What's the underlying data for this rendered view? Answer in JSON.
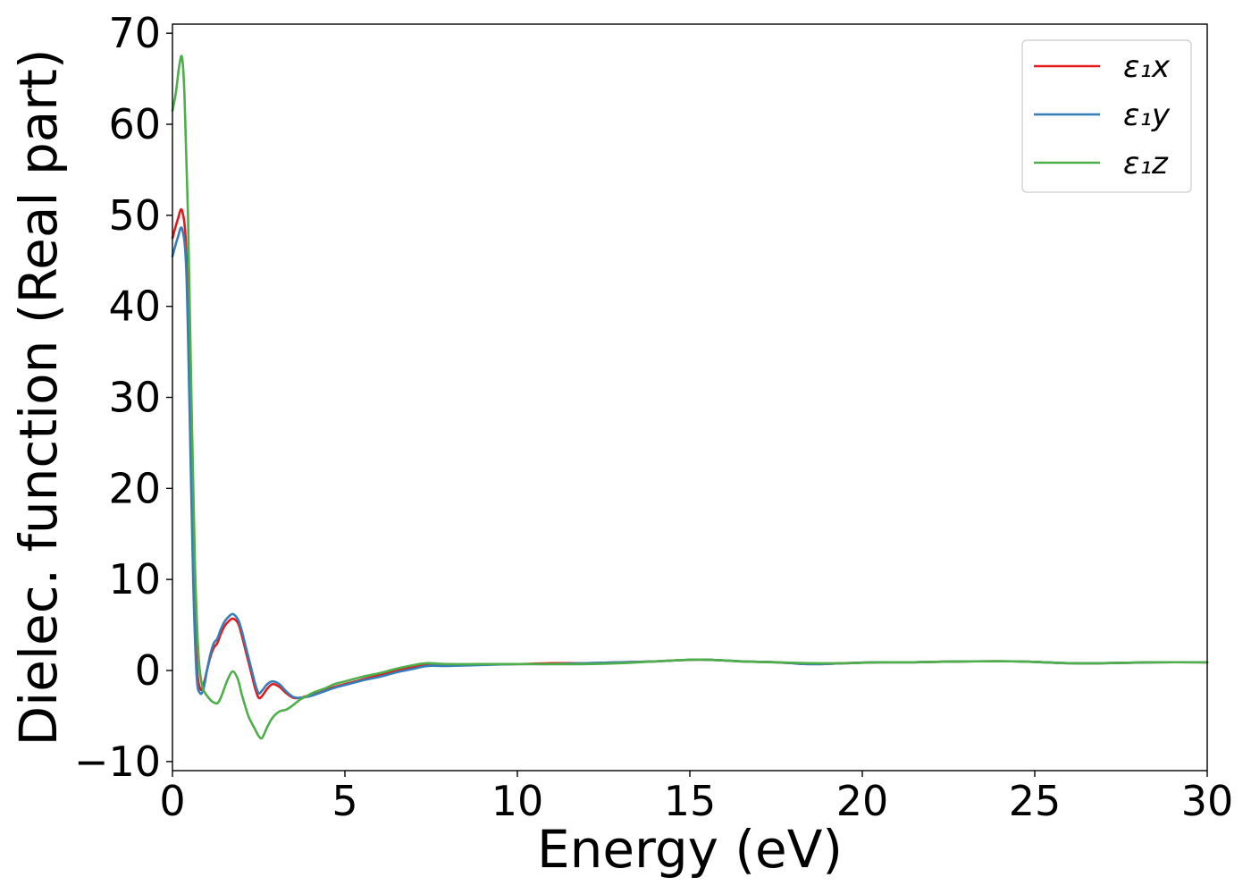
{
  "chart_data": {
    "type": "line",
    "title": "",
    "xlabel": "Energy (eV)",
    "ylabel": "Dielec. function (Real part)",
    "xlim": [
      0,
      30
    ],
    "ylim": [
      -11,
      71
    ],
    "xticks": [
      0,
      5,
      10,
      15,
      20,
      25,
      30
    ],
    "xtick_labels": [
      "0",
      "5",
      "10",
      "15",
      "20",
      "25",
      "30"
    ],
    "yticks": [
      -10,
      0,
      10,
      20,
      30,
      40,
      50,
      60,
      70
    ],
    "ytick_labels": [
      "−10",
      "0",
      "10",
      "20",
      "30",
      "40",
      "50",
      "60",
      "70"
    ],
    "grid": false,
    "legend_position": "top-right",
    "series": [
      {
        "name": "ε₁x",
        "color": "#e41a1c",
        "x": [
          0,
          0.15,
          0.28,
          0.4,
          0.5,
          0.6,
          0.7,
          0.8,
          0.9,
          1.0,
          1.1,
          1.2,
          1.3,
          1.4,
          1.5,
          1.6,
          1.75,
          1.9,
          2.0,
          2.1,
          2.2,
          2.3,
          2.4,
          2.5,
          2.6,
          2.75,
          2.9,
          3.1,
          3.3,
          3.5,
          3.7,
          3.9,
          4.1,
          4.4,
          4.7,
          5.0,
          5.5,
          6.0,
          6.5,
          7.0,
          7.4,
          8.0,
          9.0,
          10.0,
          11.0,
          12.0,
          13.0,
          14.0,
          15.3,
          16.5,
          17.5,
          18.5,
          19.5,
          20.5,
          21.5,
          23.0,
          24.5,
          26.0,
          27.0,
          28.5,
          30.0
        ],
        "y": [
          47.5,
          49.5,
          50.5,
          46.0,
          30.0,
          12.0,
          1.0,
          -2.0,
          -1.5,
          0.0,
          1.5,
          2.5,
          3.0,
          4.0,
          4.8,
          5.3,
          5.7,
          5.2,
          4.0,
          2.5,
          1.0,
          -0.5,
          -2.0,
          -3.0,
          -2.8,
          -2.0,
          -1.5,
          -1.8,
          -2.5,
          -3.0,
          -3.0,
          -2.8,
          -2.6,
          -2.2,
          -1.8,
          -1.5,
          -1.0,
          -0.5,
          0.0,
          0.4,
          0.7,
          0.6,
          0.7,
          0.7,
          0.8,
          0.8,
          0.9,
          1.0,
          1.2,
          1.0,
          0.9,
          0.7,
          0.8,
          0.9,
          0.9,
          1.0,
          1.0,
          0.8,
          0.8,
          0.9,
          0.9
        ]
      },
      {
        "name": "ε₁y",
        "color": "#377eb8",
        "x": [
          0,
          0.15,
          0.28,
          0.4,
          0.5,
          0.6,
          0.7,
          0.8,
          0.9,
          1.0,
          1.1,
          1.2,
          1.3,
          1.4,
          1.5,
          1.6,
          1.75,
          1.9,
          2.0,
          2.1,
          2.2,
          2.3,
          2.4,
          2.5,
          2.6,
          2.75,
          2.9,
          3.1,
          3.3,
          3.5,
          3.7,
          3.9,
          4.1,
          4.4,
          4.7,
          5.0,
          5.5,
          6.0,
          6.5,
          7.0,
          7.4,
          8.0,
          9.0,
          10.0,
          11.0,
          12.0,
          13.0,
          14.0,
          15.3,
          16.5,
          17.5,
          18.5,
          19.5,
          20.5,
          21.5,
          23.0,
          24.5,
          26.0,
          27.0,
          28.5,
          30.0
        ],
        "y": [
          45.5,
          47.5,
          48.5,
          44.0,
          28.0,
          10.0,
          -0.5,
          -2.5,
          -2.0,
          0.0,
          1.8,
          3.0,
          3.5,
          4.5,
          5.3,
          5.8,
          6.2,
          5.6,
          4.5,
          3.0,
          1.5,
          0.0,
          -1.5,
          -2.5,
          -2.2,
          -1.5,
          -1.2,
          -1.5,
          -2.3,
          -2.9,
          -3.0,
          -2.9,
          -2.7,
          -2.3,
          -1.9,
          -1.6,
          -1.1,
          -0.7,
          -0.2,
          0.2,
          0.5,
          0.5,
          0.6,
          0.7,
          0.7,
          0.8,
          0.9,
          1.0,
          1.2,
          1.0,
          0.9,
          0.7,
          0.8,
          0.9,
          0.9,
          1.0,
          1.0,
          0.8,
          0.8,
          0.9,
          0.9
        ]
      },
      {
        "name": "ε₁z",
        "color": "#4daf4a",
        "x": [
          0,
          0.1,
          0.2,
          0.28,
          0.35,
          0.45,
          0.55,
          0.65,
          0.75,
          0.85,
          0.95,
          1.05,
          1.15,
          1.3,
          1.4,
          1.5,
          1.6,
          1.75,
          1.9,
          2.0,
          2.1,
          2.2,
          2.3,
          2.4,
          2.5,
          2.6,
          2.75,
          2.9,
          3.1,
          3.3,
          3.5,
          3.7,
          3.9,
          4.1,
          4.4,
          4.7,
          5.0,
          5.5,
          6.0,
          6.5,
          7.0,
          7.4,
          8.0,
          9.0,
          10.0,
          11.0,
          12.0,
          13.0,
          14.0,
          15.3,
          16.5,
          17.5,
          18.5,
          19.5,
          20.5,
          21.5,
          23.0,
          24.5,
          26.0,
          27.0,
          28.5,
          30.0
        ],
        "y": [
          61.5,
          63.5,
          66.5,
          67.3,
          63.0,
          50.0,
          30.0,
          12.0,
          2.0,
          -1.5,
          -2.5,
          -3.0,
          -3.4,
          -3.6,
          -3.0,
          -2.0,
          -1.0,
          -0.1,
          -1.0,
          -2.5,
          -3.8,
          -5.0,
          -5.8,
          -6.5,
          -7.2,
          -7.4,
          -6.2,
          -5.2,
          -4.5,
          -4.3,
          -3.8,
          -3.2,
          -2.8,
          -2.4,
          -2.0,
          -1.5,
          -1.2,
          -0.7,
          -0.3,
          0.2,
          0.6,
          0.8,
          0.7,
          0.7,
          0.7,
          0.7,
          0.7,
          0.8,
          1.0,
          1.2,
          1.0,
          0.9,
          0.8,
          0.8,
          0.9,
          0.9,
          1.0,
          1.0,
          0.8,
          0.8,
          0.9,
          0.9
        ]
      }
    ]
  }
}
